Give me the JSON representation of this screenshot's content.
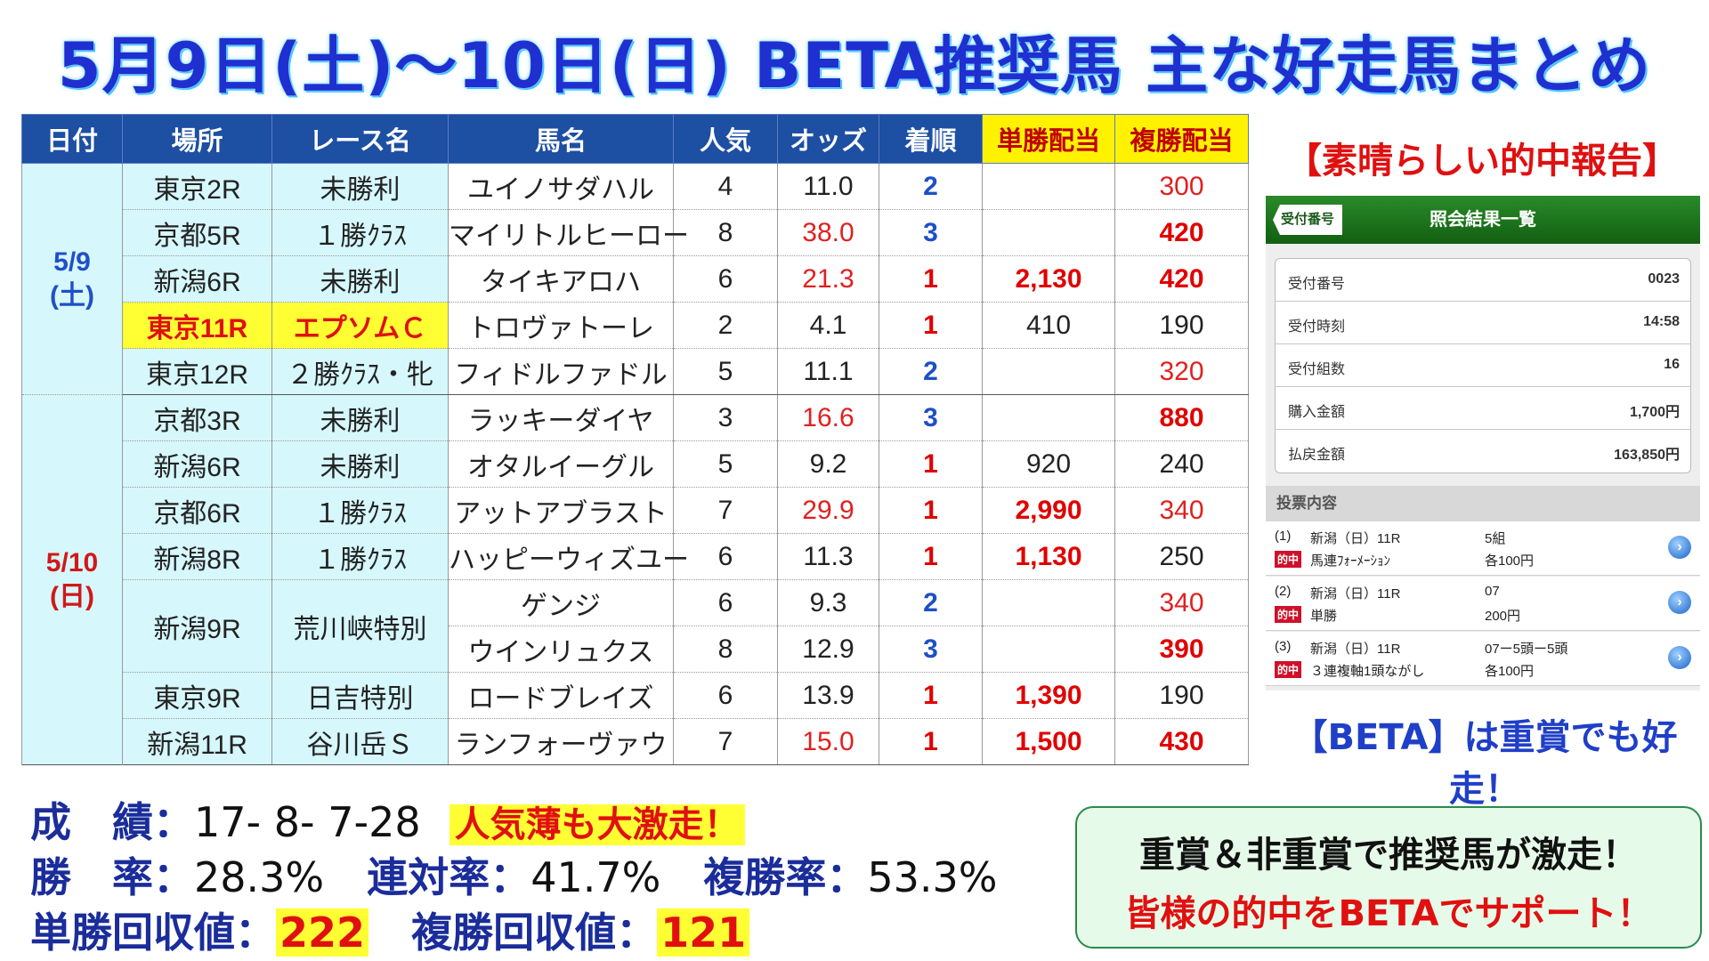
{
  "title": "5月9日(土)～10日(日) BETA推奨馬 主な好走馬まとめ",
  "table": {
    "headers": [
      "日付",
      "場所",
      "レース名",
      "馬名",
      "人気",
      "オッズ",
      "着順",
      "単勝配当",
      "複勝配当"
    ],
    "groups": [
      {
        "date_line1": "5/9",
        "date_line2": "(土)"
      },
      {
        "date_line1": "5/10",
        "date_line2": "(日)"
      }
    ],
    "rows": [
      {
        "place": "東京2R",
        "race": "未勝利",
        "horse": "ユイノサダハル",
        "pop": "4",
        "odds": "11.0",
        "finish": "2",
        "win": "",
        "place_pay": "300"
      },
      {
        "place": "京都5R",
        "race": "１勝ｸﾗｽ",
        "horse": "マイリトルヒーロー",
        "pop": "8",
        "odds": "38.0",
        "finish": "3",
        "win": "",
        "place_pay": "420"
      },
      {
        "place": "新潟6R",
        "race": "未勝利",
        "horse": "タイキアロハ",
        "pop": "6",
        "odds": "21.3",
        "finish": "1",
        "win": "2,130",
        "place_pay": "420"
      },
      {
        "place": "東京11R",
        "race": "エプソムＣ",
        "horse": "トロヴァトーレ",
        "pop": "2",
        "odds": "4.1",
        "finish": "1",
        "win": "410",
        "place_pay": "190"
      },
      {
        "place": "東京12R",
        "race": "２勝ｸﾗｽ・牝",
        "horse": "フィドルファドル",
        "pop": "5",
        "odds": "11.1",
        "finish": "2",
        "win": "",
        "place_pay": "320"
      },
      {
        "place": "京都3R",
        "race": "未勝利",
        "horse": "ラッキーダイヤ",
        "pop": "3",
        "odds": "16.6",
        "finish": "3",
        "win": "",
        "place_pay": "880"
      },
      {
        "place": "新潟6R",
        "race": "未勝利",
        "horse": "オタルイーグル",
        "pop": "5",
        "odds": "9.2",
        "finish": "1",
        "win": "920",
        "place_pay": "240"
      },
      {
        "place": "京都6R",
        "race": "１勝ｸﾗｽ",
        "horse": "アットアブラスト",
        "pop": "7",
        "odds": "29.9",
        "finish": "1",
        "win": "2,990",
        "place_pay": "340"
      },
      {
        "place": "新潟8R",
        "race": "１勝ｸﾗｽ",
        "horse": "ハッピーウィズユー",
        "pop": "6",
        "odds": "11.3",
        "finish": "1",
        "win": "1,130",
        "place_pay": "250"
      },
      {
        "place": "新潟9R",
        "race": "荒川峡特別",
        "horse": "ゲンジ",
        "pop": "6",
        "odds": "9.3",
        "finish": "2",
        "win": "",
        "place_pay": "340"
      },
      {
        "place": "",
        "race": "",
        "horse": "ウインリュクス",
        "pop": "8",
        "odds": "12.9",
        "finish": "3",
        "win": "",
        "place_pay": "390"
      },
      {
        "place": "東京9R",
        "race": "日吉特別",
        "horse": "ロードブレイズ",
        "pop": "6",
        "odds": "13.9",
        "finish": "1",
        "win": "1,390",
        "place_pay": "190"
      },
      {
        "place": "新潟11R",
        "race": "谷川岳Ｓ",
        "horse": "ランフォーヴァウ",
        "pop": "7",
        "odds": "15.0",
        "finish": "1",
        "win": "1,500",
        "place_pay": "430"
      }
    ]
  },
  "report": {
    "heading": "【素晴らしい的中報告】",
    "header_tag": "受付番号",
    "header_title": "照会結果一覧",
    "fields": [
      {
        "k": "受付番号",
        "v": "0023"
      },
      {
        "k": "受付時刻",
        "v": "14:58"
      },
      {
        "k": "受付組数",
        "v": "16"
      },
      {
        "k": "購入金額",
        "v": "1,700円"
      },
      {
        "k": "払戻金額",
        "v": "163,850円"
      }
    ],
    "section": "投票内容",
    "items": [
      {
        "no": "(1)",
        "race": "新潟（日）11R",
        "hit": "的中",
        "type": "馬連ﾌｫｰﾒｰｼｮﾝ",
        "count": "5組",
        "amount": "各100円"
      },
      {
        "no": "(2)",
        "race": "新潟（日）11R",
        "hit": "的中",
        "type": "単勝",
        "count": "07",
        "amount": "200円"
      },
      {
        "no": "(3)",
        "race": "新潟（日）11R",
        "hit": "的中",
        "type": "３連複軸1頭ながし",
        "count": "07ー5頭ー5頭",
        "amount": "各100円"
      }
    ],
    "arrow_icon": "chevron-right-circle-icon",
    "note": "【BETA】は重賞でも好走！"
  },
  "stats": {
    "record_label": "成　績：",
    "record_value": "17- 8- 7-28",
    "record_badge": "人気薄も大激走！",
    "win_label": "勝　率：",
    "win_value": "28.3%",
    "quinella_label": "連対率：",
    "quinella_value": "41.7%",
    "show_label": "複勝率：",
    "show_value": "53.3%",
    "win_return_label": "単勝回収値：",
    "win_return_value": "222",
    "show_return_label": "複勝回収値：",
    "show_return_value": "121"
  },
  "promo": {
    "line1": "重賞＆非重賞で推奨馬が激走！",
    "line2": "皆様の的中をBETAでサポート！"
  },
  "colors": {
    "header_blue": "#1d4fa3",
    "highlight_yellow": "#ffff33",
    "red": "#e01010",
    "blue": "#1f4fc8",
    "date_bg": "#d6f7fb"
  }
}
